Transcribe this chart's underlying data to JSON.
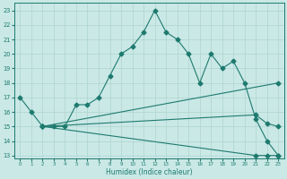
{
  "xlabel": "Humidex (Indice chaleur)",
  "xlim": [
    -0.5,
    23.5
  ],
  "ylim": [
    12.8,
    23.5
  ],
  "yticks": [
    13,
    14,
    15,
    16,
    17,
    18,
    19,
    20,
    21,
    22,
    23
  ],
  "xticks": [
    0,
    1,
    2,
    3,
    4,
    5,
    6,
    7,
    8,
    9,
    10,
    11,
    12,
    13,
    14,
    15,
    16,
    17,
    18,
    19,
    20,
    21,
    22,
    23
  ],
  "bg_color": "#c9e8e6",
  "line_color": "#1e7a6e",
  "grid_color": "#b0d4d0",
  "line1_x": [
    0,
    1,
    2,
    3,
    4,
    5,
    6,
    7,
    8,
    9,
    10,
    11,
    12,
    13,
    14,
    15,
    16,
    17,
    18,
    19,
    20,
    21,
    22,
    23
  ],
  "line1_y": [
    17,
    16,
    15,
    15,
    15,
    16.5,
    16.5,
    17,
    18.5,
    20,
    20.5,
    21.5,
    23,
    21.5,
    21,
    20,
    18,
    20,
    19,
    19.5,
    18,
    15.5,
    14,
    13
  ],
  "line2_x": [
    2,
    23
  ],
  "line2_y": [
    15,
    18
  ],
  "line3_x": [
    2,
    21,
    22,
    23
  ],
  "line3_y": [
    15,
    15.8,
    15.2,
    15.0
  ],
  "line4_x": [
    2,
    21,
    22,
    23
  ],
  "line4_y": [
    15,
    13.0,
    13.0,
    13.0
  ]
}
